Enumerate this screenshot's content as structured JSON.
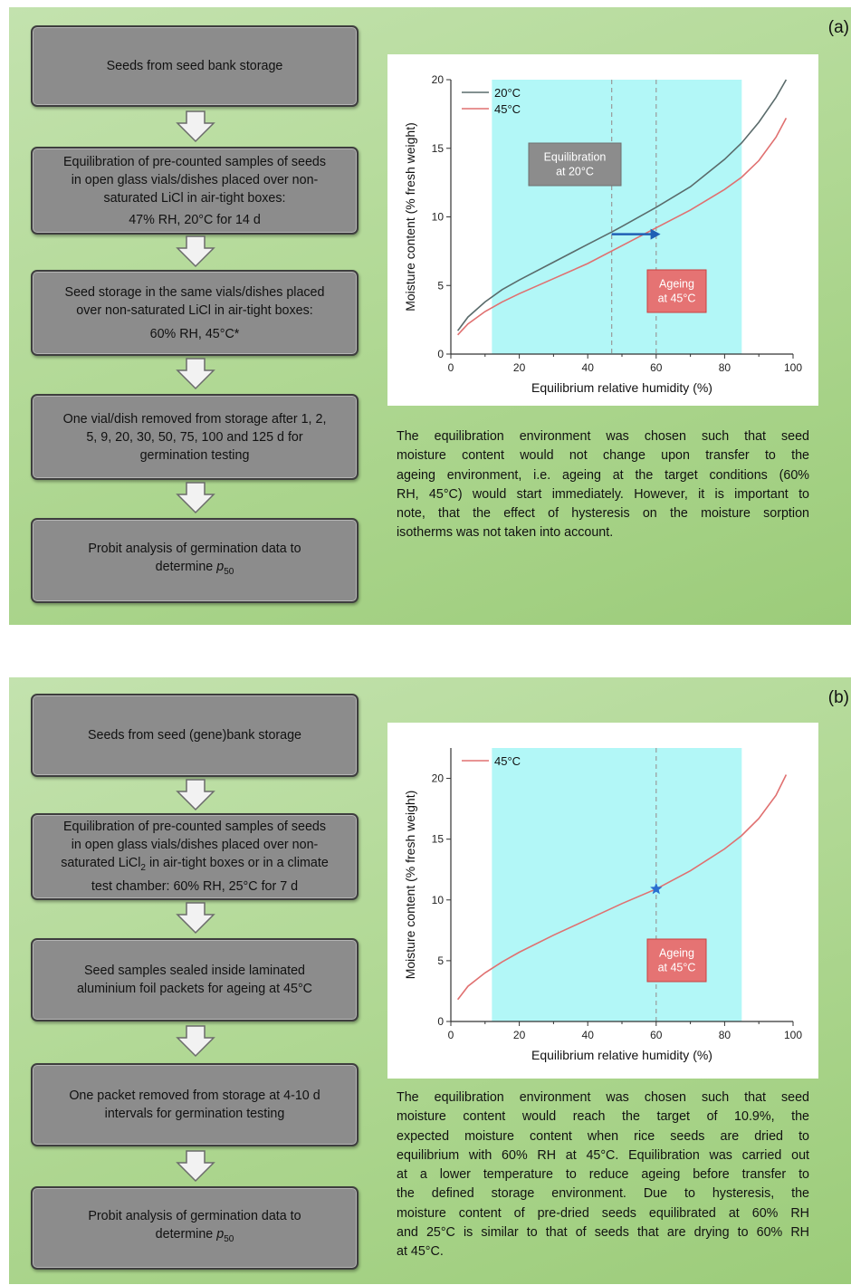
{
  "panel_a": {
    "label": "(a)",
    "flow": [
      {
        "lines": [
          "Seeds from seed bank storage"
        ]
      },
      {
        "lines": [
          "Equilibration of pre-counted samples of seeds",
          "in open glass vials/dishes placed over non-",
          "saturated LiCl in air-tight boxes:",
          "47% RH, 20°C for 14 d"
        ]
      },
      {
        "lines": [
          "Seed storage in the same vials/dishes placed",
          "over non-saturated LiCl in air-tight boxes:",
          "60% RH, 45°C*"
        ]
      },
      {
        "lines": [
          "One vial/dish removed from storage after 1, 2,",
          "5, 9, 20, 30, 50, 75, 100 and 125 d for",
          "germination testing"
        ]
      },
      {
        "lines": [
          "Probit analysis of germination data to",
          "determine p50"
        ]
      }
    ],
    "caption_lines": [
      "The equilibration environment was chosen such that seed",
      "moisture content would not change upon transfer to the",
      "ageing environment, i.e. ageing at the target conditions (60%",
      "RH, 45°C) would start immediately. However, it is important to",
      "note, that the effect of hysteresis on the moisture sorption",
      "isotherms was not taken into account."
    ]
  },
  "panel_b": {
    "label": "(b)",
    "flow": [
      {
        "lines": [
          "Seeds from seed (gene)bank storage"
        ]
      },
      {
        "lines": [
          "Equilibration of pre-counted samples of seeds",
          "in open glass vials/dishes placed over non-",
          "saturated LiCl2 in air-tight boxes or in a climate",
          "test chamber: 60% RH, 25°C for 7 d"
        ]
      },
      {
        "lines": [
          "Seed samples sealed inside laminated",
          "aluminium foil packets for ageing at 45°C"
        ]
      },
      {
        "lines": [
          "One packet removed from storage at 4-10 d",
          "intervals for germination testing"
        ]
      },
      {
        "lines": [
          "Probit analysis of germination data to",
          "determine p50"
        ]
      }
    ],
    "caption_lines": [
      "The equilibration environment was chosen such that seed",
      "moisture content would reach the target of 10.9%, the",
      "expected moisture content when rice seeds are dried to",
      "equilibrium with 60% RH at 45°C. Equilibration was carried out",
      "at a lower temperature to reduce ageing before transfer to",
      "the defined storage environment. Due to hysteresis, the",
      "moisture content of pre-dried seeds equilibrated at 60% RH",
      "and 25°C is similar to that of seeds that are drying to 60% RH",
      "at 45°C."
    ]
  },
  "chart_data": [
    {
      "type": "line",
      "xlabel": "Equilibrium relative humidity (%)",
      "ylabel": "Moisture content (% fresh weight)",
      "xlim": [
        0,
        100
      ],
      "ylim": [
        0,
        20
      ],
      "xticks": [
        0,
        20,
        40,
        60,
        80,
        100
      ],
      "yticks": [
        0,
        5,
        10,
        15,
        20
      ],
      "legend": "top-left",
      "grid": false,
      "shaded_band_x": [
        12,
        85
      ],
      "vlines_x": [
        47,
        60
      ],
      "series": [
        {
          "name": "20°C",
          "color": "#5a6b6b",
          "x": [
            2,
            5,
            10,
            15,
            20,
            30,
            40,
            47,
            50,
            60,
            70,
            80,
            85,
            90,
            95,
            98
          ],
          "y": [
            1.7,
            2.7,
            3.8,
            4.7,
            5.4,
            6.7,
            8.0,
            8.9,
            9.3,
            10.7,
            12.2,
            14.2,
            15.4,
            16.9,
            18.7,
            20.0
          ]
        },
        {
          "name": "45°C",
          "color": "#e07070",
          "x": [
            2,
            5,
            10,
            15,
            20,
            30,
            40,
            50,
            60,
            70,
            80,
            85,
            90,
            95,
            98
          ],
          "y": [
            1.4,
            2.2,
            3.1,
            3.8,
            4.4,
            5.5,
            6.6,
            7.9,
            9.2,
            10.5,
            12.0,
            12.9,
            14.1,
            15.8,
            17.2
          ]
        }
      ],
      "annotations": [
        {
          "text_lines": [
            "Equilibration",
            "at 20°C"
          ],
          "fill": "#8c8c8c",
          "text_color": "#ffffff"
        },
        {
          "text_lines": [
            "Ageing",
            "at 45°C"
          ],
          "fill": "#e57373",
          "text_color": "#ffffff"
        }
      ],
      "arrow": {
        "from": [
          47,
          9.0
        ],
        "to": [
          61,
          9.0
        ],
        "color": "#1f5fb5"
      }
    },
    {
      "type": "line",
      "xlabel": "Equilibrium relative humidity (%)",
      "ylabel": "Moisture content (% fresh weight)",
      "xlim": [
        0,
        100
      ],
      "ylim": [
        0,
        22.5
      ],
      "xticks": [
        0,
        20,
        40,
        60,
        80,
        100
      ],
      "yticks": [
        0,
        5,
        10,
        15,
        20
      ],
      "legend": "top-left",
      "grid": false,
      "shaded_band_x": [
        12,
        85
      ],
      "vlines_x": [
        60
      ],
      "series": [
        {
          "name": "45°C",
          "color": "#e07070",
          "x": [
            2,
            5,
            10,
            15,
            20,
            30,
            40,
            50,
            60,
            70,
            80,
            85,
            90,
            95,
            98
          ],
          "y": [
            1.8,
            2.9,
            4.0,
            4.9,
            5.7,
            7.1,
            8.4,
            9.7,
            10.9,
            12.4,
            14.2,
            15.3,
            16.7,
            18.6,
            20.3
          ]
        }
      ],
      "marker": {
        "x": 60,
        "y": 10.9,
        "symbol": "star",
        "color": "#2a6fd0"
      },
      "annotations": [
        {
          "text_lines": [
            "Ageing",
            "at 45°C"
          ],
          "fill": "#e57373",
          "text_color": "#ffffff"
        }
      ]
    }
  ]
}
